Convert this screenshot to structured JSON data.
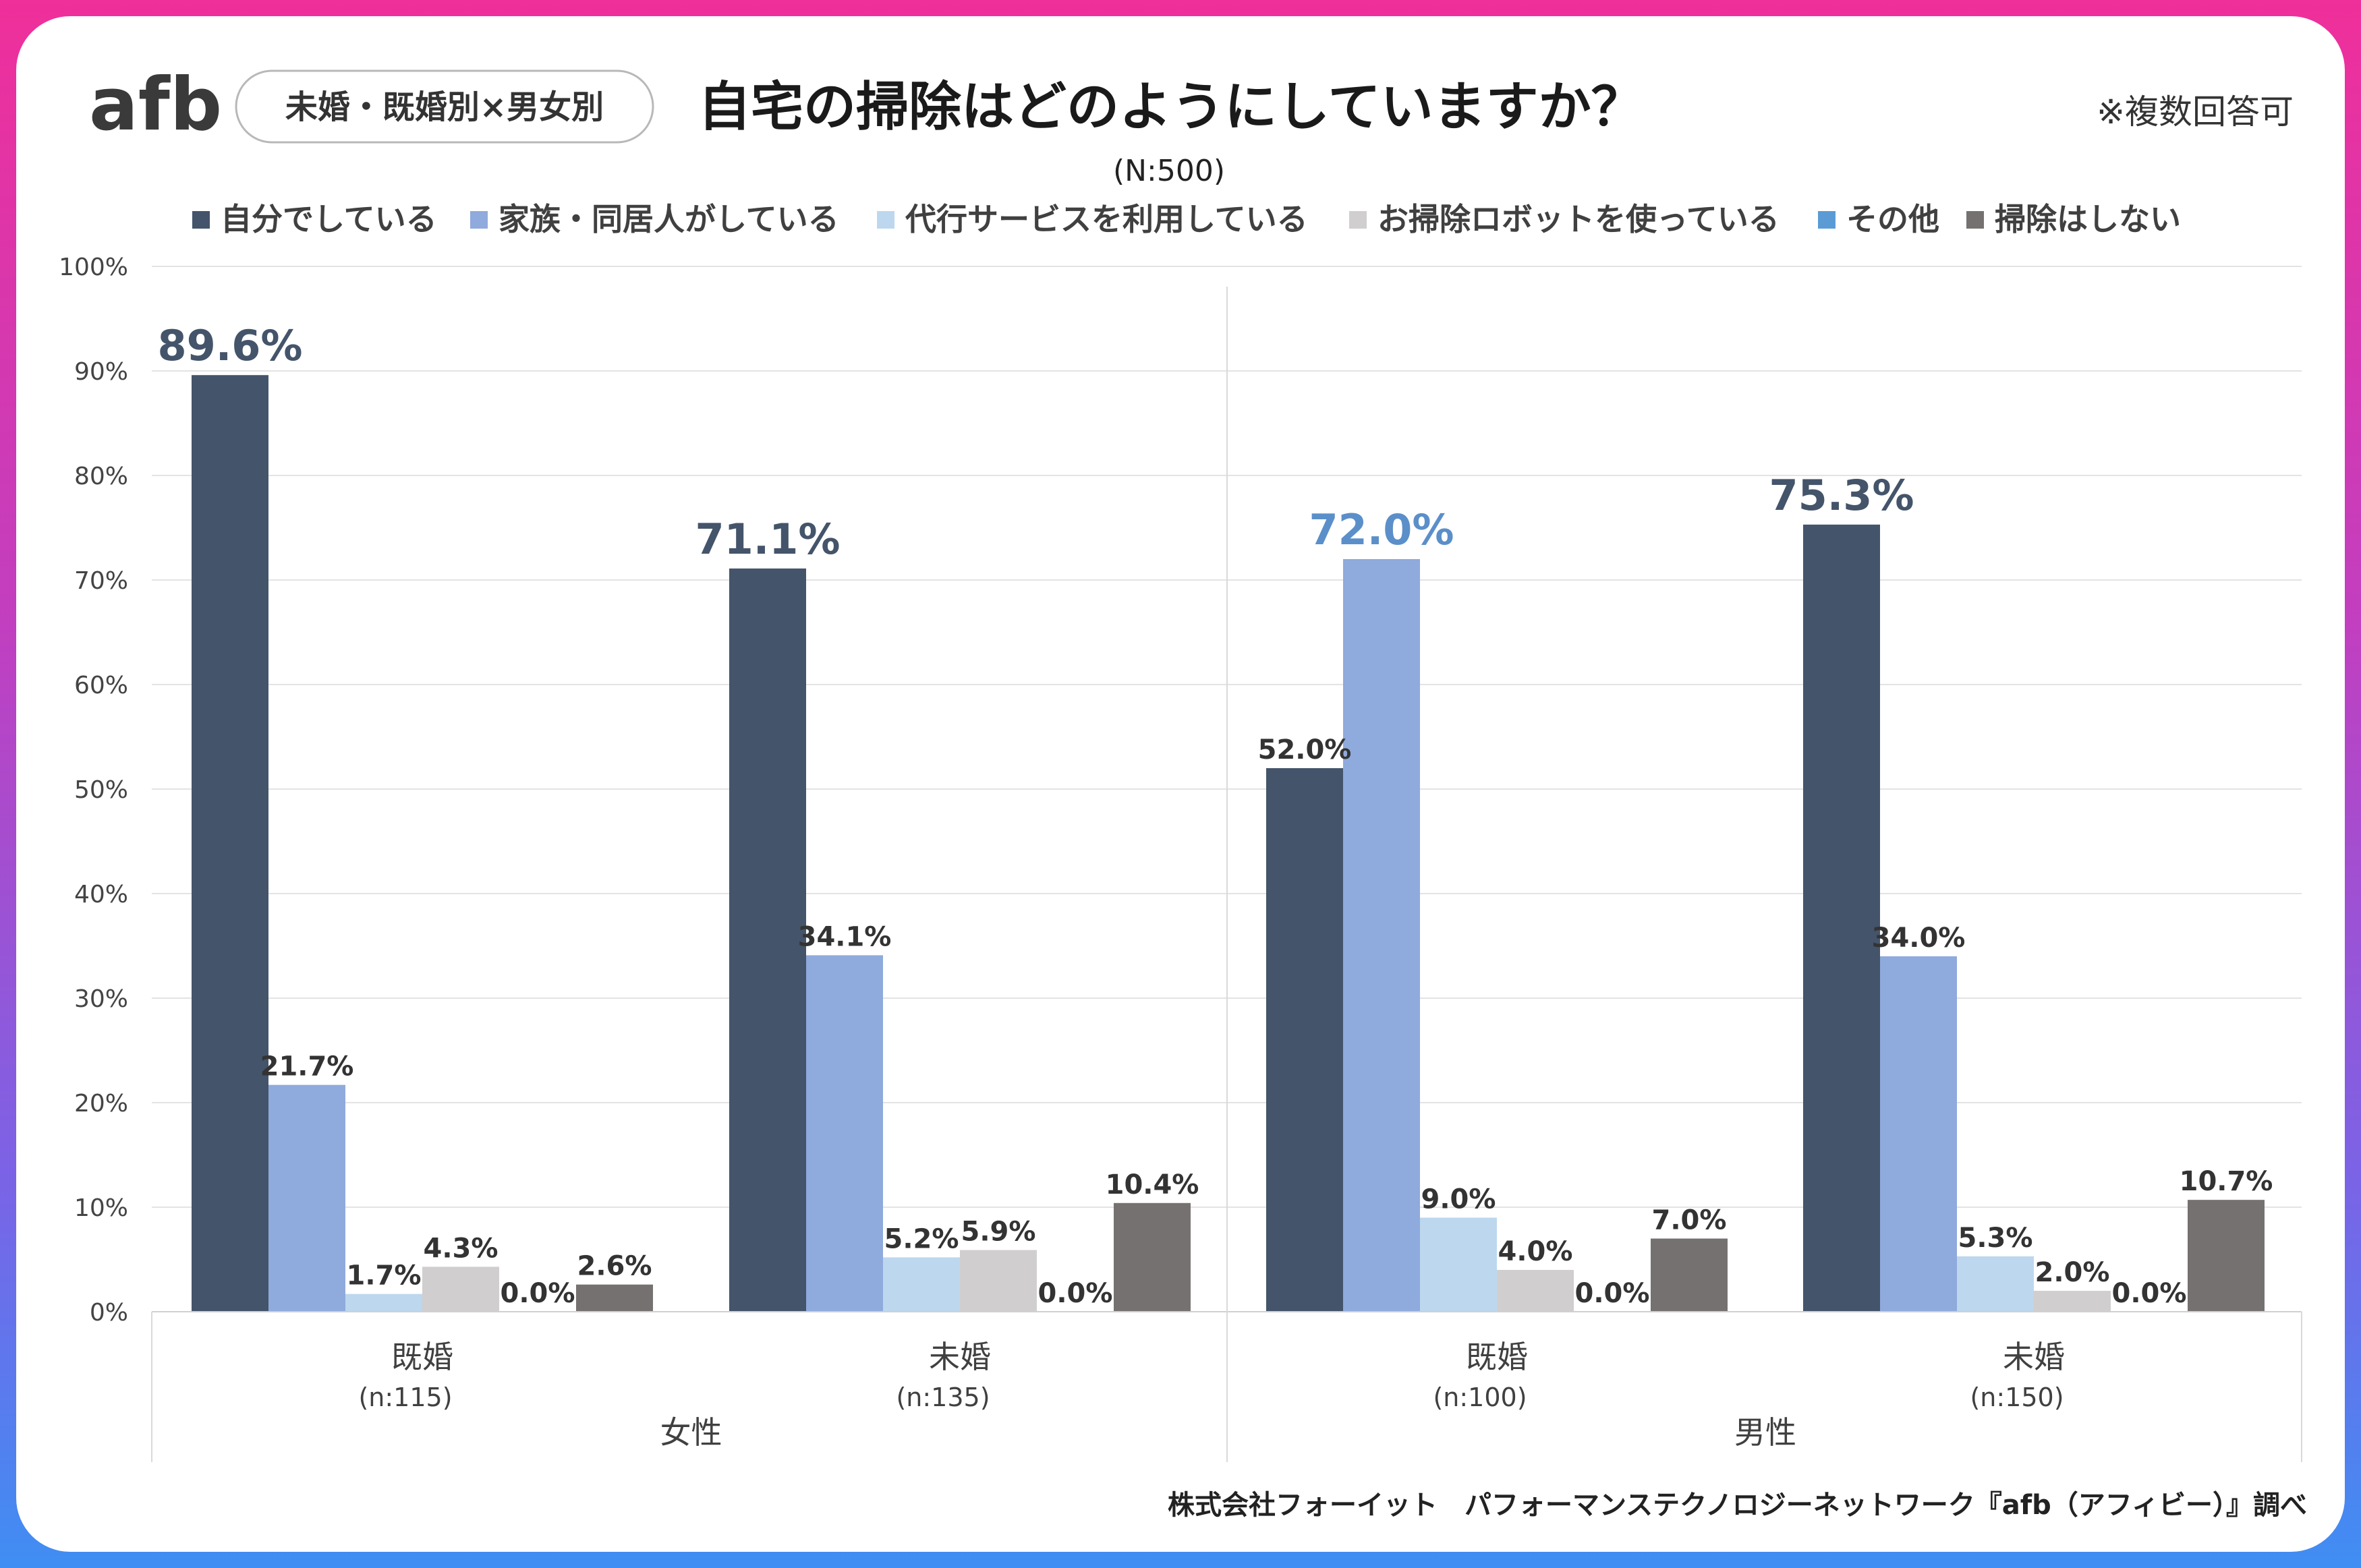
{
  "brand": {
    "logo_text": "afb",
    "logo_colors": {
      "af": "#3a3a3a",
      "b_start": "#f23c96",
      "b_end": "#6b6cf0"
    }
  },
  "header": {
    "tag_label": "未婚・既婚別×男女別",
    "title": "自宅の掃除はどのようにしていますか？",
    "note": "※複数回答可",
    "sample": "(N:500)"
  },
  "footer": {
    "credit": "株式会社フォーイット　パフォーマンステクノロジーネットワーク『afb（アフィビー）』調べ"
  },
  "chart_data": {
    "type": "bar",
    "title": "自宅の掃除はどのようにしていますか？",
    "ylim": [
      0,
      100
    ],
    "y_ticks": [
      "0%",
      "10%",
      "20%",
      "30%",
      "40%",
      "50%",
      "60%",
      "70%",
      "80%",
      "90%",
      "100%"
    ],
    "gridlines": true,
    "legend_position": "top",
    "series": [
      {
        "name": "自分でしている",
        "color": "#44546a"
      },
      {
        "name": "家族・同居人がしている",
        "color": "#8faadc"
      },
      {
        "name": "代行サービスを利用している",
        "color": "#bdd7ee"
      },
      {
        "name": "お掃除ロボットを使っている",
        "color": "#d0cece"
      },
      {
        "name": "その他",
        "color": "#5b9bd5"
      },
      {
        "name": "掃除はしない",
        "color": "#767171"
      }
    ],
    "groups": [
      {
        "name": "女性",
        "categories": [
          {
            "label": "既婚",
            "n": "(n:115)",
            "values": [
              89.6,
              21.7,
              1.7,
              4.3,
              0.0,
              2.6
            ],
            "labels": [
              "89.6%",
              "21.7%",
              "1.7%",
              "4.3%",
              "0.0%",
              "2.6%"
            ],
            "highlight": 0
          },
          {
            "label": "未婚",
            "n": "(n:135)",
            "values": [
              71.1,
              34.1,
              5.2,
              5.9,
              0.0,
              10.4
            ],
            "labels": [
              "71.1%",
              "34.1%",
              "5.2%",
              "5.9%",
              "0.0%",
              "10.4%"
            ],
            "highlight": 0
          }
        ]
      },
      {
        "name": "男性",
        "categories": [
          {
            "label": "既婚",
            "n": "(n:100)",
            "values": [
              52.0,
              72.0,
              9.0,
              4.0,
              0.0,
              7.0
            ],
            "labels": [
              "52.0%",
              "72.0%",
              "9.0%",
              "4.0%",
              "0.0%",
              "7.0%"
            ],
            "highlight": 1
          },
          {
            "label": "未婚",
            "n": "(n:150)",
            "values": [
              75.3,
              34.0,
              5.3,
              2.0,
              0.0,
              10.7
            ],
            "labels": [
              "75.3%",
              "34.0%",
              "5.3%",
              "2.0%",
              "0.0%",
              "10.7%"
            ],
            "highlight": 0
          }
        ]
      }
    ],
    "highlight_label_colors": [
      "#44546a",
      "#5b8fc9"
    ]
  }
}
